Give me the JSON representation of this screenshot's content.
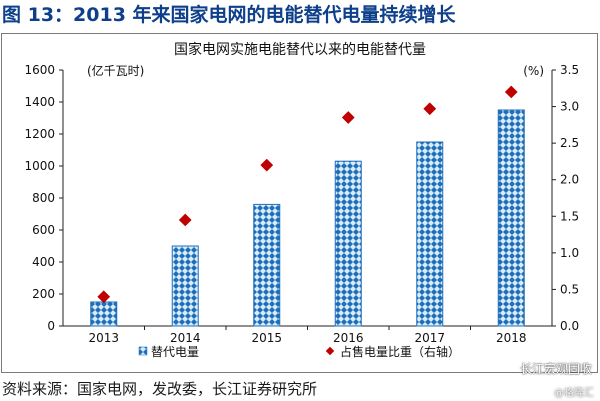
{
  "figure_title": "图 13：2013 年来国家电网的电能替代电量持续增长",
  "source": "资料来源：国家电网，发改委，长江证券研究所",
  "watermark": "长江宏观固收",
  "watermark_sub": "@格隆汇",
  "chart_data": {
    "type": "bar",
    "title": "国家电网实施电能替代以来的电能替代量",
    "categories": [
      "2013",
      "2014",
      "2015",
      "2016",
      "2017",
      "2018"
    ],
    "y_left_unit": "(亿千瓦时)",
    "y_right_unit": "(%)",
    "ylim_left": [
      0,
      1600
    ],
    "ylim_right": [
      0,
      3.5
    ],
    "yticks_left": [
      "0",
      "200",
      "400",
      "600",
      "800",
      "1000",
      "1200",
      "1400",
      "1600"
    ],
    "yticks_right": [
      "0.0",
      "0.5",
      "1.0",
      "1.5",
      "2.0",
      "2.5",
      "3.0",
      "3.5"
    ],
    "series": [
      {
        "name": "替代电量",
        "type": "bar",
        "axis": "left",
        "color": "#1f6fb8",
        "values": [
          150,
          500,
          760,
          1030,
          1150,
          1350
        ]
      },
      {
        "name": "占售电量比重（右轴）",
        "type": "scatter",
        "axis": "right",
        "color": "#c00000",
        "values": [
          0.4,
          1.45,
          2.2,
          2.85,
          2.97,
          3.2
        ]
      }
    ],
    "grid": false,
    "legend_position": "bottom"
  }
}
